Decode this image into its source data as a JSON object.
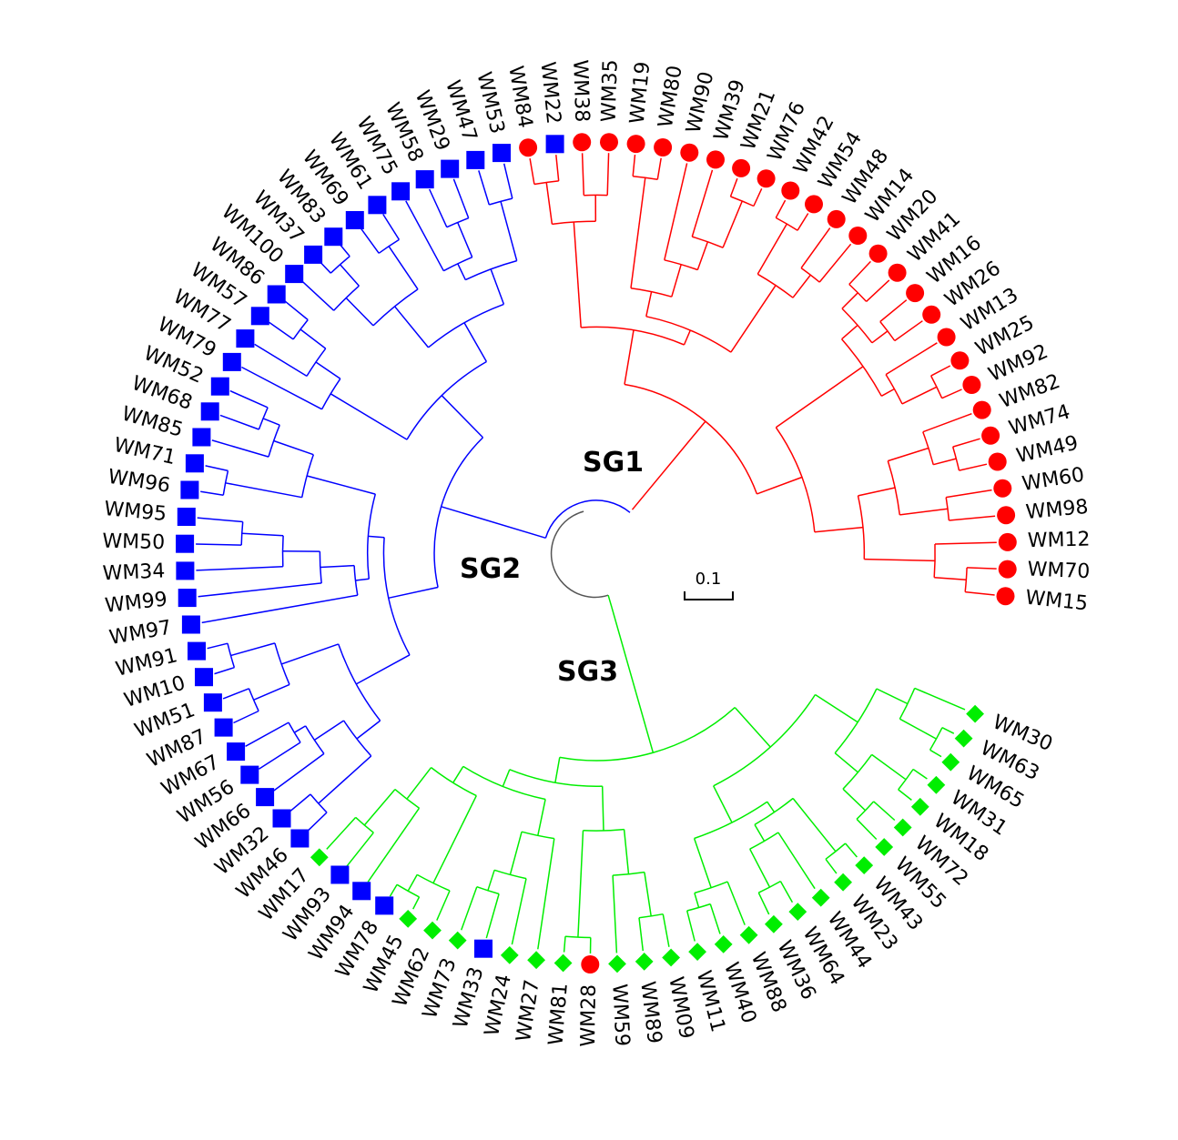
{
  "figure": {
    "type": "circular-dendrogram",
    "scale_bar_label": "0.1",
    "colors": {
      "SG1": "#ff0000",
      "SG2": "#0000ff",
      "SG3": "#00ee00",
      "root": "#555555"
    }
  },
  "subgroups": [
    {
      "id": "SG1",
      "label": "SG1"
    },
    {
      "id": "SG2",
      "label": "SG2"
    },
    {
      "id": "SG3",
      "label": "SG3"
    }
  ],
  "leaves": [
    {
      "name": "WM15",
      "group": "SG1",
      "marker": "circle"
    },
    {
      "name": "WM70",
      "group": "SG1",
      "marker": "circle"
    },
    {
      "name": "WM12",
      "group": "SG1",
      "marker": "circle"
    },
    {
      "name": "WM98",
      "group": "SG1",
      "marker": "circle"
    },
    {
      "name": "WM60",
      "group": "SG1",
      "marker": "circle"
    },
    {
      "name": "WM49",
      "group": "SG1",
      "marker": "circle"
    },
    {
      "name": "WM74",
      "group": "SG1",
      "marker": "circle"
    },
    {
      "name": "WM82",
      "group": "SG1",
      "marker": "circle"
    },
    {
      "name": "WM92",
      "group": "SG1",
      "marker": "circle"
    },
    {
      "name": "WM25",
      "group": "SG1",
      "marker": "circle"
    },
    {
      "name": "WM13",
      "group": "SG1",
      "marker": "circle"
    },
    {
      "name": "WM26",
      "group": "SG1",
      "marker": "circle"
    },
    {
      "name": "WM16",
      "group": "SG1",
      "marker": "circle"
    },
    {
      "name": "WM41",
      "group": "SG1",
      "marker": "circle"
    },
    {
      "name": "WM20",
      "group": "SG1",
      "marker": "circle"
    },
    {
      "name": "WM14",
      "group": "SG1",
      "marker": "circle"
    },
    {
      "name": "WM48",
      "group": "SG1",
      "marker": "circle"
    },
    {
      "name": "WM54",
      "group": "SG1",
      "marker": "circle"
    },
    {
      "name": "WM42",
      "group": "SG1",
      "marker": "circle"
    },
    {
      "name": "WM76",
      "group": "SG1",
      "marker": "circle"
    },
    {
      "name": "WM21",
      "group": "SG1",
      "marker": "circle"
    },
    {
      "name": "WM39",
      "group": "SG1",
      "marker": "circle"
    },
    {
      "name": "WM90",
      "group": "SG1",
      "marker": "circle"
    },
    {
      "name": "WM80",
      "group": "SG1",
      "marker": "circle"
    },
    {
      "name": "WM19",
      "group": "SG1",
      "marker": "circle"
    },
    {
      "name": "WM35",
      "group": "SG1",
      "marker": "circle"
    },
    {
      "name": "WM38",
      "group": "SG1",
      "marker": "circle"
    },
    {
      "name": "WM22",
      "group": "SG1",
      "marker": "square"
    },
    {
      "name": "WM84",
      "group": "SG1",
      "marker": "circle"
    },
    {
      "name": "WM53",
      "group": "SG2",
      "marker": "square"
    },
    {
      "name": "WM47",
      "group": "SG2",
      "marker": "square"
    },
    {
      "name": "WM29",
      "group": "SG2",
      "marker": "square"
    },
    {
      "name": "WM58",
      "group": "SG2",
      "marker": "square"
    },
    {
      "name": "WM75",
      "group": "SG2",
      "marker": "square"
    },
    {
      "name": "WM61",
      "group": "SG2",
      "marker": "square"
    },
    {
      "name": "WM69",
      "group": "SG2",
      "marker": "square"
    },
    {
      "name": "WM83",
      "group": "SG2",
      "marker": "square"
    },
    {
      "name": "WM37",
      "group": "SG2",
      "marker": "square"
    },
    {
      "name": "WM100",
      "group": "SG2",
      "marker": "square"
    },
    {
      "name": "WM86",
      "group": "SG2",
      "marker": "square"
    },
    {
      "name": "WM57",
      "group": "SG2",
      "marker": "square"
    },
    {
      "name": "WM77",
      "group": "SG2",
      "marker": "square"
    },
    {
      "name": "WM79",
      "group": "SG2",
      "marker": "square"
    },
    {
      "name": "WM52",
      "group": "SG2",
      "marker": "square"
    },
    {
      "name": "WM68",
      "group": "SG2",
      "marker": "square"
    },
    {
      "name": "WM85",
      "group": "SG2",
      "marker": "square"
    },
    {
      "name": "WM71",
      "group": "SG2",
      "marker": "square"
    },
    {
      "name": "WM96",
      "group": "SG2",
      "marker": "square"
    },
    {
      "name": "WM95",
      "group": "SG2",
      "marker": "square"
    },
    {
      "name": "WM50",
      "group": "SG2",
      "marker": "square"
    },
    {
      "name": "WM34",
      "group": "SG2",
      "marker": "square"
    },
    {
      "name": "WM99",
      "group": "SG2",
      "marker": "square"
    },
    {
      "name": "WM97",
      "group": "SG2",
      "marker": "square"
    },
    {
      "name": "WM91",
      "group": "SG2",
      "marker": "square"
    },
    {
      "name": "WM10",
      "group": "SG2",
      "marker": "square"
    },
    {
      "name": "WM51",
      "group": "SG2",
      "marker": "square"
    },
    {
      "name": "WM87",
      "group": "SG2",
      "marker": "square"
    },
    {
      "name": "WM67",
      "group": "SG2",
      "marker": "square"
    },
    {
      "name": "WM56",
      "group": "SG2",
      "marker": "square"
    },
    {
      "name": "WM66",
      "group": "SG2",
      "marker": "square"
    },
    {
      "name": "WM32",
      "group": "SG2",
      "marker": "square"
    },
    {
      "name": "WM46",
      "group": "SG2",
      "marker": "square"
    },
    {
      "name": "WM17",
      "group": "SG3",
      "marker": "diamond"
    },
    {
      "name": "WM93",
      "group": "SG3",
      "marker": "square"
    },
    {
      "name": "WM94",
      "group": "SG3",
      "marker": "square"
    },
    {
      "name": "WM78",
      "group": "SG3",
      "marker": "square"
    },
    {
      "name": "WM45",
      "group": "SG3",
      "marker": "diamond"
    },
    {
      "name": "WM62",
      "group": "SG3",
      "marker": "diamond"
    },
    {
      "name": "WM73",
      "group": "SG3",
      "marker": "diamond"
    },
    {
      "name": "WM33",
      "group": "SG3",
      "marker": "square"
    },
    {
      "name": "WM24",
      "group": "SG3",
      "marker": "diamond"
    },
    {
      "name": "WM27",
      "group": "SG3",
      "marker": "diamond"
    },
    {
      "name": "WM81",
      "group": "SG3",
      "marker": "diamond"
    },
    {
      "name": "WM28",
      "group": "SG3",
      "marker": "circle"
    },
    {
      "name": "WM59",
      "group": "SG3",
      "marker": "diamond"
    },
    {
      "name": "WM89",
      "group": "SG3",
      "marker": "diamond"
    },
    {
      "name": "WM09",
      "group": "SG3",
      "marker": "diamond"
    },
    {
      "name": "WM11",
      "group": "SG3",
      "marker": "diamond"
    },
    {
      "name": "WM40",
      "group": "SG3",
      "marker": "diamond"
    },
    {
      "name": "WM88",
      "group": "SG3",
      "marker": "diamond"
    },
    {
      "name": "WM36",
      "group": "SG3",
      "marker": "diamond"
    },
    {
      "name": "WM64",
      "group": "SG3",
      "marker": "diamond"
    },
    {
      "name": "WM44",
      "group": "SG3",
      "marker": "diamond"
    },
    {
      "name": "WM23",
      "group": "SG3",
      "marker": "diamond"
    },
    {
      "name": "WM43",
      "group": "SG3",
      "marker": "diamond"
    },
    {
      "name": "WM55",
      "group": "SG3",
      "marker": "diamond"
    },
    {
      "name": "WM72",
      "group": "SG3",
      "marker": "diamond"
    },
    {
      "name": "WM18",
      "group": "SG3",
      "marker": "diamond"
    },
    {
      "name": "WM31",
      "group": "SG3",
      "marker": "diamond"
    },
    {
      "name": "WM65",
      "group": "SG3",
      "marker": "diamond"
    },
    {
      "name": "WM63",
      "group": "SG3",
      "marker": "diamond"
    },
    {
      "name": "WM30",
      "group": "SG3",
      "marker": "diamond"
    }
  ]
}
